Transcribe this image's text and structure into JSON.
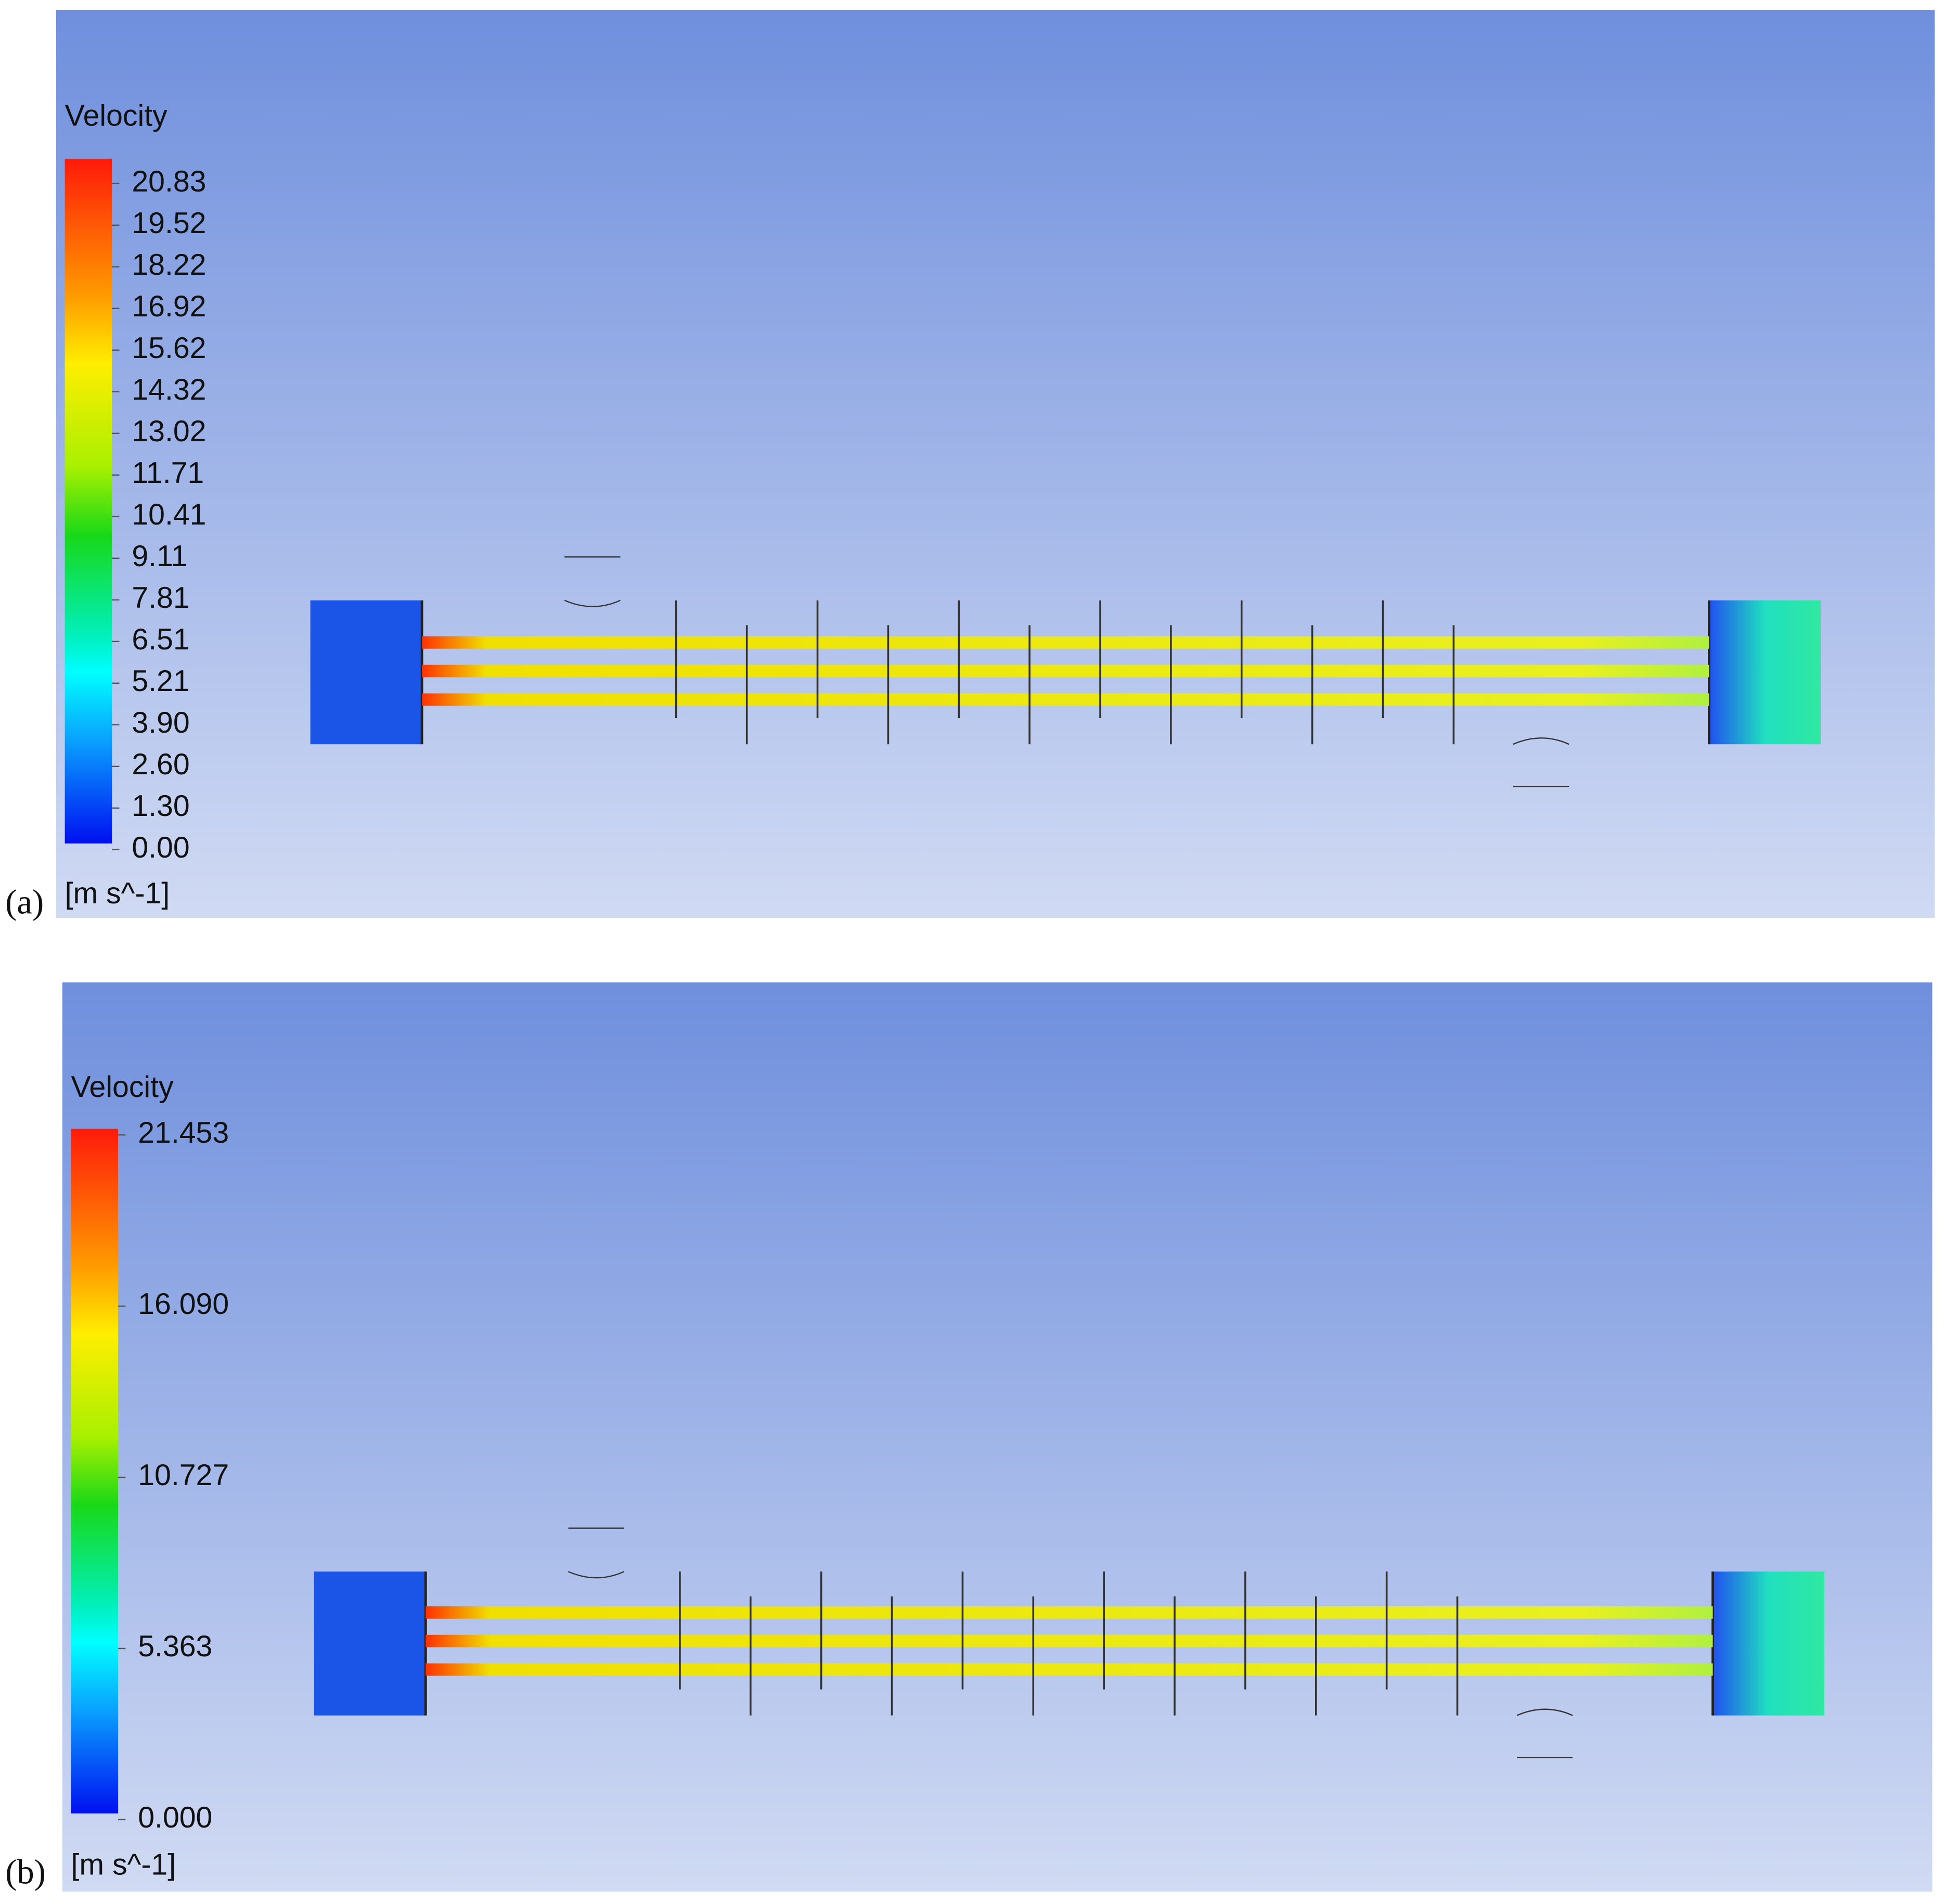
{
  "panels": [
    {
      "label": "(a)",
      "legend_title": "Velocity",
      "ticks": [
        "20.83",
        "19.52",
        "18.22",
        "16.92",
        "15.62",
        "14.32",
        "13.02",
        "11.71",
        "10.41",
        "9.11",
        "7.81",
        "6.51",
        "5.21",
        "3.90",
        "2.60",
        "1.30",
        "0.00"
      ],
      "unit": "[m s^-1]"
    },
    {
      "label": "(b)",
      "legend_title": "Velocity",
      "ticks": [
        "21.453",
        "16.090",
        "10.727",
        "5.363",
        "0.000"
      ],
      "unit": "[m s^-1]"
    }
  ]
}
